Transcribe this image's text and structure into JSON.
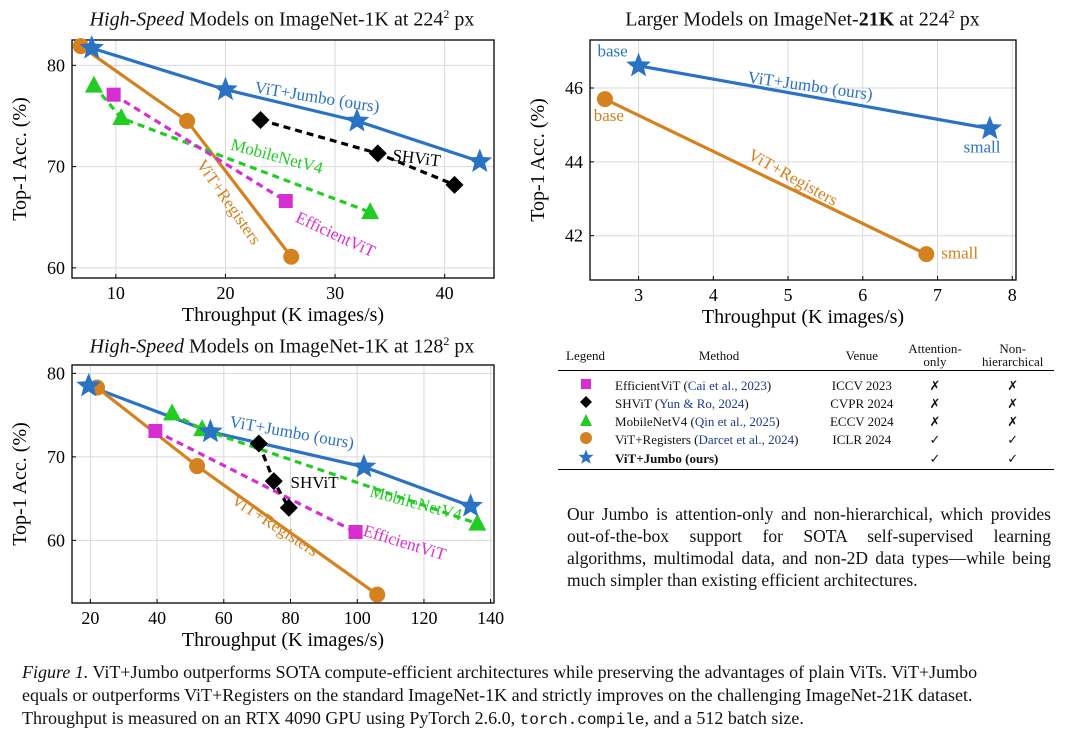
{
  "colors": {
    "jumbo": "#2a72c4",
    "registers": "#d4811f",
    "mobilenet": "#22cc22",
    "efficientvit": "#d62ed1",
    "shvit": "#000000",
    "cite": "#1b3c8c"
  },
  "chart_data": [
    {
      "id": "top-left",
      "type": "line",
      "title_italic": "High-Speed",
      "title_rest": "Models on ImageNet-1K at 224",
      "title_sup": "2",
      "title_tail": " px",
      "xlabel": "Throughput (K images/s)",
      "ylabel": "Top-1 Acc. (%)",
      "xlim": [
        6,
        44.5
      ],
      "ylim": [
        59,
        82.5
      ],
      "xticks": [
        "10",
        "20",
        "30",
        "40"
      ],
      "xtick_values": [
        10,
        20,
        30,
        40
      ],
      "yticks": [
        "60",
        "70",
        "80"
      ],
      "ytick_values": [
        60,
        70,
        80
      ],
      "series": [
        {
          "name": "ViT+Jumbo (ours)",
          "color_key": "jumbo",
          "marker": "star",
          "dash": false,
          "x": [
            7.8,
            20,
            32,
            43.2
          ],
          "y": [
            81.7,
            77.6,
            74.5,
            70.5
          ]
        },
        {
          "name": "ViT+Registers",
          "color_key": "registers",
          "marker": "circle",
          "dash": false,
          "x": [
            6.8,
            16.5,
            26
          ],
          "y": [
            81.9,
            74.5,
            61.1
          ]
        },
        {
          "name": "MobileNetV4",
          "color_key": "mobilenet",
          "marker": "triangle",
          "dash": true,
          "x": [
            8,
            10.5,
            33.2
          ],
          "y": [
            78,
            74.8,
            65.5
          ]
        },
        {
          "name": "EfficientViT",
          "color_key": "efficientvit",
          "marker": "square",
          "dash": true,
          "x": [
            9.8,
            25.5
          ],
          "y": [
            77.1,
            66.6
          ]
        },
        {
          "name": "SHViT",
          "color_key": "shvit",
          "marker": "diamond",
          "dash": true,
          "x": [
            23.2,
            33.9,
            40.9
          ],
          "y": [
            74.6,
            71.3,
            68.2
          ]
        }
      ],
      "annotations": [
        {
          "text": "ViT+Jumbo (ours)",
          "color_key": "jumbo",
          "x": 22.6,
          "y": 77.3,
          "rotate": 9
        },
        {
          "text": "SHViT",
          "color_key": "shvit",
          "x": 35.2,
          "y": 70.6,
          "rotate": 7
        },
        {
          "text": "MobileNetV4",
          "color_key": "mobilenet",
          "x": 20.4,
          "y": 71.7,
          "rotate": 15
        },
        {
          "text": "EfficientViT",
          "color_key": "efficientvit",
          "x": 26.3,
          "y": 64.6,
          "rotate": 25
        },
        {
          "text": "ViT+Registers",
          "color_key": "registers",
          "x": 17.3,
          "y": 70.2,
          "rotate": 55
        }
      ]
    },
    {
      "id": "top-right",
      "type": "line",
      "title_pre": "Larger Models on ImageNet-",
      "title_bold": "21K",
      "title_rest": " at 224",
      "title_sup": "2",
      "title_tail": " px",
      "xlabel": "Throughput (K images/s)",
      "ylabel": "Top-1 Acc. (%)",
      "xlim": [
        2.35,
        8.05
      ],
      "ylim": [
        40.8,
        47.3
      ],
      "xticks": [
        "3",
        "4",
        "5",
        "6",
        "7",
        "8"
      ],
      "xtick_values": [
        3,
        4,
        5,
        6,
        7,
        8
      ],
      "yticks": [
        "42",
        "44",
        "46"
      ],
      "ytick_values": [
        42,
        44,
        46
      ],
      "series": [
        {
          "name": "ViT+Jumbo (ours)",
          "color_key": "jumbo",
          "marker": "star",
          "dash": false,
          "x": [
            3,
            7.7
          ],
          "y": [
            46.6,
            44.9
          ]
        },
        {
          "name": "ViT+Registers",
          "color_key": "registers",
          "marker": "circle",
          "dash": false,
          "x": [
            2.55,
            6.85
          ],
          "y": [
            45.7,
            41.5
          ]
        }
      ],
      "annotations": [
        {
          "text": "ViT+Jumbo (ours)",
          "color_key": "jumbo",
          "x": 4.45,
          "y": 46.15,
          "rotate": 8
        },
        {
          "text": "ViT+Registers",
          "color_key": "registers",
          "x": 4.45,
          "y": 44.1,
          "rotate": 29
        },
        {
          "text": "base",
          "color_key": "jumbo",
          "x": 2.45,
          "y": 46.85,
          "rotate": 0
        },
        {
          "text": "small",
          "color_key": "jumbo",
          "x": 7.35,
          "y": 44.25,
          "rotate": 0
        },
        {
          "text": "base",
          "color_key": "registers",
          "x": 2.4,
          "y": 45.1,
          "rotate": 0
        },
        {
          "text": "small",
          "color_key": "registers",
          "x": 7.05,
          "y": 41.38,
          "rotate": 0
        }
      ]
    },
    {
      "id": "bottom-left",
      "type": "line",
      "title_italic": "High-Speed",
      "title_rest": "Models on ImageNet-1K at 128",
      "title_sup": "2",
      "title_tail": " px",
      "xlabel": "Throughput (K images/s)",
      "ylabel": "Top-1 Acc. (%)",
      "xlim": [
        14.5,
        141
      ],
      "ylim": [
        52.5,
        81
      ],
      "xticks": [
        "20",
        "40",
        "60",
        "80",
        "100",
        "120",
        "140"
      ],
      "xtick_values": [
        20,
        40,
        60,
        80,
        100,
        120,
        140
      ],
      "yticks": [
        "60",
        "70",
        "80"
      ],
      "ytick_values": [
        60,
        70,
        80
      ],
      "series": [
        {
          "name": "ViT+Jumbo (ours)",
          "color_key": "jumbo",
          "marker": "star",
          "dash": false,
          "x": [
            19.5,
            56,
            102,
            134
          ],
          "y": [
            78.5,
            73,
            68.8,
            64.1
          ]
        },
        {
          "name": "ViT+Registers",
          "color_key": "registers",
          "marker": "circle",
          "dash": false,
          "x": [
            22,
            52,
            106
          ],
          "y": [
            78.3,
            68.9,
            53.5
          ]
        },
        {
          "name": "MobileNetV4",
          "color_key": "mobilenet",
          "marker": "triangle",
          "dash": true,
          "x": [
            44.5,
            53.5,
            136
          ],
          "y": [
            75.2,
            73.3,
            62
          ]
        },
        {
          "name": "EfficientViT",
          "color_key": "efficientvit",
          "marker": "square",
          "dash": true,
          "x": [
            39.5,
            99.5
          ],
          "y": [
            73.1,
            61
          ]
        },
        {
          "name": "SHViT",
          "color_key": "shvit",
          "marker": "diamond",
          "dash": true,
          "x": [
            70.5,
            75,
            79.5
          ],
          "y": [
            71.6,
            67.1,
            63.9
          ]
        }
      ],
      "annotations": [
        {
          "text": "ViT+Jumbo (ours)",
          "color_key": "jumbo",
          "x": 61.5,
          "y": 73.6,
          "rotate": 10
        },
        {
          "text": "SHViT",
          "color_key": "shvit",
          "x": 80,
          "y": 66.3,
          "rotate": 0
        },
        {
          "text": "MobileNetV4",
          "color_key": "mobilenet",
          "x": 103.5,
          "y": 65.3,
          "rotate": 15
        },
        {
          "text": "EfficientViT",
          "color_key": "efficientvit",
          "x": 101.5,
          "y": 60.6,
          "rotate": 17
        },
        {
          "text": "ViT+Registers",
          "color_key": "registers",
          "x": 62,
          "y": 64.5,
          "rotate": 33
        }
      ]
    }
  ],
  "legend": {
    "headers": {
      "legend": "Legend",
      "method": "Method",
      "venue": "Venue",
      "attention_1": "Attention-",
      "attention_2": "only",
      "nonhier_1": "Non-",
      "nonhier_2": "hierarchical"
    },
    "rows": [
      {
        "method": "EfficientViT",
        "cite": "Cai et al., 2023",
        "venue": "ICCV 2023",
        "attention": "✗",
        "nonhier": "✗"
      },
      {
        "method": "SHViT",
        "cite": "Yun & Ro, 2024",
        "venue": "CVPR 2024",
        "attention": "✗",
        "nonhier": "✗"
      },
      {
        "method": "MobileNetV4",
        "cite": "Qin et al., 2025",
        "venue": "ECCV 2024",
        "attention": "✗",
        "nonhier": "✗"
      },
      {
        "method": "ViT+Registers",
        "cite": "Darcet et al., 2024",
        "venue": "ICLR 2024",
        "attention": "✓",
        "nonhier": "✓"
      },
      {
        "method": "ViT+Jumbo (ours)",
        "venue": "",
        "attention": "✓",
        "nonhier": "✓"
      }
    ]
  },
  "description": "Our Jumbo is attention-only and non-hierarchical, which provides out-of-the-box support for SOTA self-supervised learning algorithms, multimodal data, and non-2D data types—while being much simpler than existing efficient architectures.",
  "caption": {
    "label": "Figure 1.",
    "line1": " ViT+Jumbo outperforms SOTA compute-efficient architectures while preserving the advantages of plain ViTs. ViT+Jumbo",
    "line2": "equals or outperforms ViT+Registers on the standard ImageNet-1K and strictly improves on the challenging ImageNet-21K dataset.",
    "line3a": "Throughput is measured on an RTX 4090 GPU using PyTorch 2.6.0, ",
    "code": "torch.compile",
    "line3b": ", and a 512 batch size."
  }
}
